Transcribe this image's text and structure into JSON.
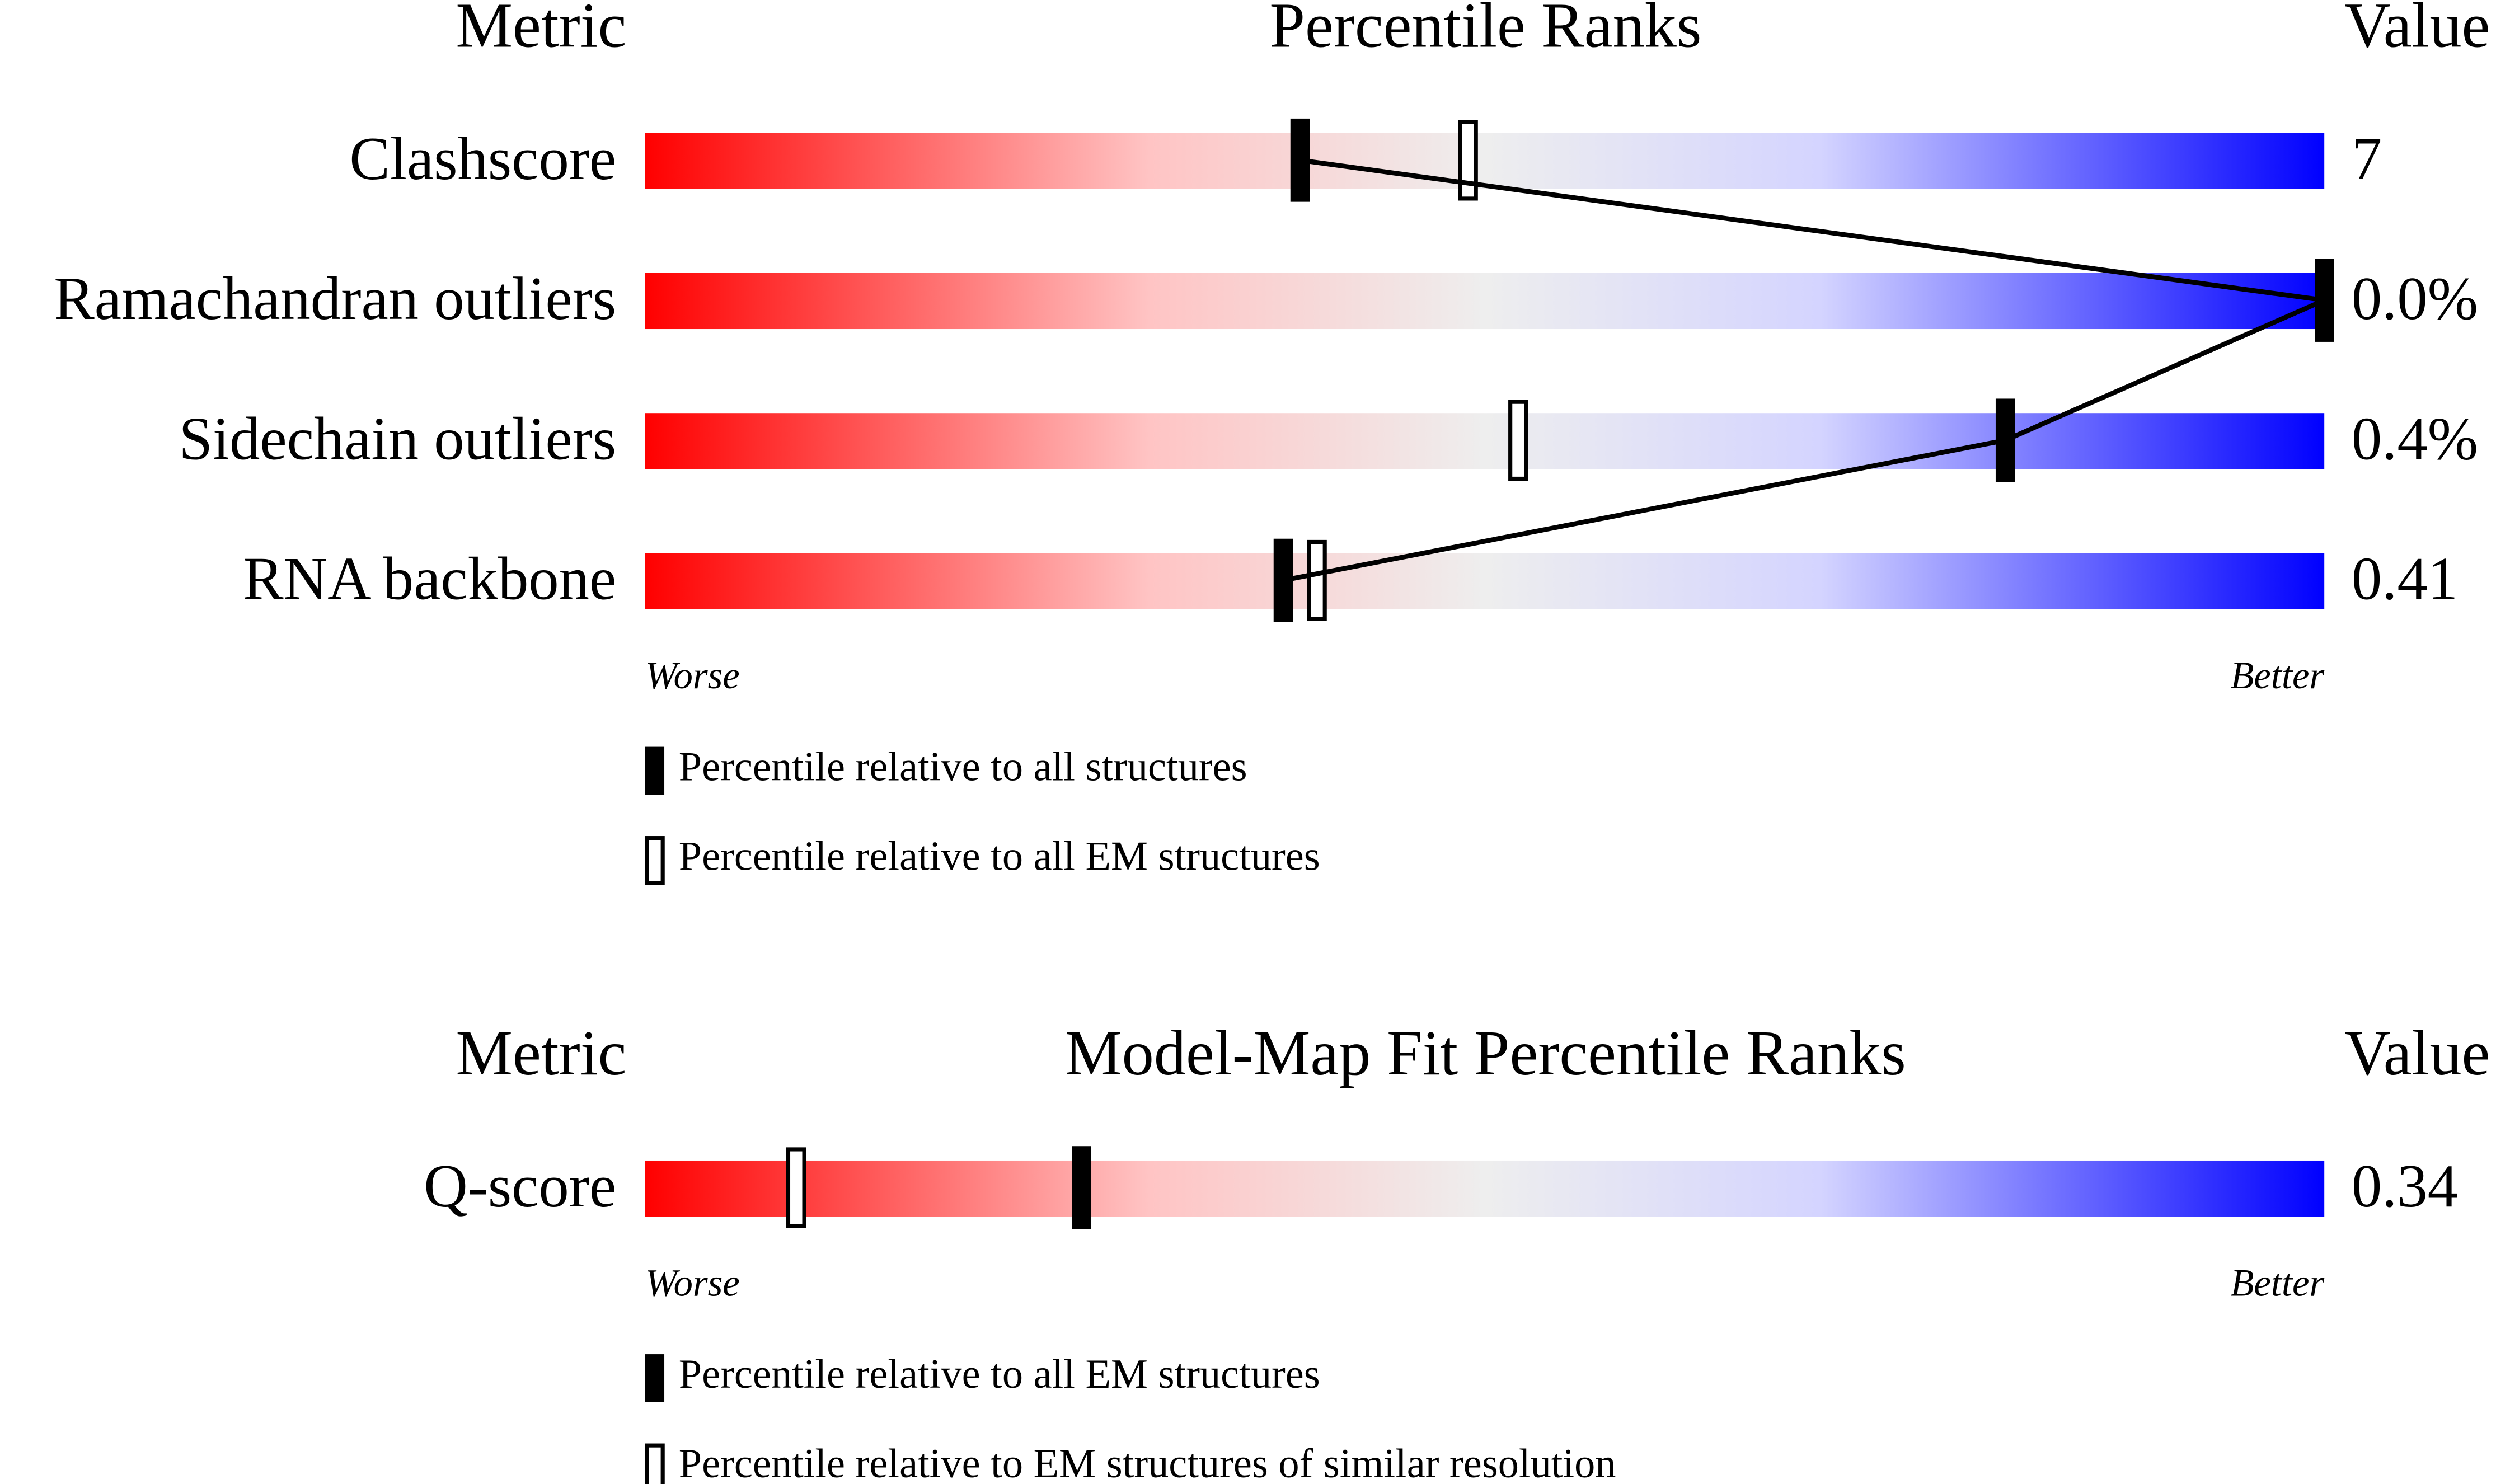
{
  "chart_data": [
    {
      "type": "slider",
      "headers": [
        "Metric",
        "Percentile Ranks",
        "Value"
      ],
      "xlim": [
        0,
        100
      ],
      "rows": [
        {
          "name": "Clashscore",
          "value": "7",
          "percentile_all": 39,
          "percentile_em": 49
        },
        {
          "name": "Ramachandran outliers",
          "value": "0.0%",
          "percentile_all": 100,
          "percentile_em": null
        },
        {
          "name": "Sidechain outliers",
          "value": "0.4%",
          "percentile_all": 81,
          "percentile_em": 52
        },
        {
          "name": "RNA backbone",
          "value": "0.41",
          "percentile_all": 38,
          "percentile_em": 40
        }
      ],
      "worse": "Worse",
      "better": "Better",
      "legend": [
        "Percentile relative to all structures",
        "Percentile relative to all EM structures"
      ]
    },
    {
      "type": "slider",
      "headers": [
        "Metric",
        "Model-Map Fit Percentile Ranks",
        "Value"
      ],
      "xlim": [
        0,
        100
      ],
      "rows": [
        {
          "name": "Q-score",
          "value": "0.34",
          "percentile_all": 26,
          "percentile_em": 9
        }
      ],
      "worse": "Worse",
      "better": "Better",
      "legend": [
        "Percentile relative to all EM structures",
        "Percentile relative to EM structures of similar resolution"
      ]
    }
  ]
}
